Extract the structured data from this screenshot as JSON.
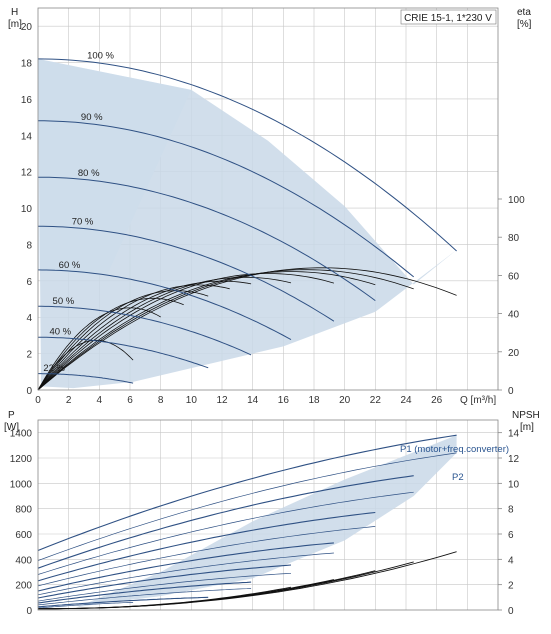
{
  "chart_data": [
    {
      "type": "line",
      "title": "CRIE 15-1, 1*230 V",
      "xlabel": "Q [m³/h]",
      "ylabel_left": [
        "H",
        "[m]"
      ],
      "ylabel_right": [
        "eta",
        "[%]"
      ],
      "xlim": [
        0,
        30
      ],
      "ylim": [
        0,
        21
      ],
      "eta_lim": [
        0,
        200
      ],
      "x_ticks": [
        "0",
        "2",
        "4",
        "6",
        "8",
        "10",
        "12",
        "14",
        "16",
        "18",
        "20",
        "22",
        "24",
        "26"
      ],
      "y_ticks": [
        "0",
        "2",
        "4",
        "6",
        "8",
        "10",
        "12",
        "14",
        "16",
        "18",
        "20"
      ],
      "eta_ticks": [
        "0",
        "20",
        "40",
        "60",
        "80",
        "100"
      ],
      "grid": true,
      "speed_labels": [
        "100 %",
        "90 %",
        "80 %",
        "70 %",
        "60 %",
        "50 %",
        "40 %",
        "22 %"
      ],
      "head_curves": [
        {
          "speed": 1.0,
          "h0": 18.2,
          "qmax": 27.3
        },
        {
          "speed": 0.9,
          "h0": 14.8,
          "qmax": 24.5
        },
        {
          "speed": 0.8,
          "h0": 11.7,
          "qmax": 22.0
        },
        {
          "speed": 0.7,
          "h0": 9.0,
          "qmax": 19.3
        },
        {
          "speed": 0.6,
          "h0": 6.6,
          "qmax": 16.5
        },
        {
          "speed": 0.5,
          "h0": 4.6,
          "qmax": 13.9
        },
        {
          "speed": 0.4,
          "h0": 2.9,
          "qmax": 11.1
        },
        {
          "speed": 0.22,
          "h0": 0.9,
          "qmax": 6.2
        }
      ],
      "operating_area": [
        [
          0,
          18.2
        ],
        [
          10,
          16.5
        ],
        [
          15,
          13.7
        ],
        [
          20,
          10.1
        ],
        [
          24.5,
          5.8
        ],
        [
          27.3,
          7.7
        ],
        [
          22,
          4.3
        ],
        [
          16,
          2.4
        ],
        [
          10,
          1.2
        ],
        [
          6.2,
          0.45
        ],
        [
          2.3,
          0.1
        ],
        [
          0.2,
          0.2
        ]
      ],
      "upper_light_area": [
        [
          0,
          18.2
        ],
        [
          10,
          16.5
        ],
        [
          4.5,
          6.3
        ],
        [
          0,
          6.6
        ]
      ],
      "eta_curves": [
        {
          "qpeak": 18.5,
          "etapeak": 64,
          "qmax": 27.3
        },
        {
          "qpeak": 17.5,
          "etapeak": 63,
          "qmax": 24.5
        },
        {
          "qpeak": 16.5,
          "etapeak": 62,
          "qmax": 22.0
        },
        {
          "qpeak": 15.0,
          "etapeak": 61,
          "qmax": 19.3
        },
        {
          "qpeak": 13.5,
          "etapeak": 59,
          "qmax": 16.5
        },
        {
          "qpeak": 12.0,
          "etapeak": 57,
          "qmax": 13.9
        },
        {
          "qpeak": 10.5,
          "etapeak": 55,
          "qmax": 12.5
        },
        {
          "qpeak": 9.0,
          "etapeak": 52,
          "qmax": 11.1
        },
        {
          "qpeak": 7.5,
          "etapeak": 48,
          "qmax": 9.5
        },
        {
          "qpeak": 6.0,
          "etapeak": 43,
          "qmax": 8.0
        },
        {
          "qpeak": 3.8,
          "etapeak": 26,
          "qmax": 6.2
        }
      ]
    },
    {
      "type": "line",
      "xlim": [
        0,
        30
      ],
      "ylabel_left": [
        "P",
        "[W]"
      ],
      "ylabel_right": [
        "NPSH",
        "[m]"
      ],
      "ylim": [
        0,
        1500
      ],
      "npsh_lim": [
        0,
        15
      ],
      "y_ticks": [
        "0",
        "200",
        "400",
        "600",
        "800",
        "1000",
        "1200",
        "1400"
      ],
      "npsh_ticks": [
        "0",
        "2",
        "4",
        "6",
        "8",
        "10",
        "12",
        "14"
      ],
      "grid": true,
      "series_labels": [
        "P1 (motor+freq.converter)",
        "P2"
      ],
      "power_curves": [
        {
          "p0": 470,
          "pend": 1380,
          "qmax": 27.3
        },
        {
          "p0": 390,
          "pend": 1240,
          "qmax": 27.3
        },
        {
          "p0": 330,
          "pend": 1060,
          "qmax": 24.5
        },
        {
          "p0": 280,
          "pend": 930,
          "qmax": 24.5
        },
        {
          "p0": 230,
          "pend": 770,
          "qmax": 22.0
        },
        {
          "p0": 190,
          "pend": 660,
          "qmax": 22.0
        },
        {
          "p0": 150,
          "pend": 530,
          "qmax": 19.3
        },
        {
          "p0": 120,
          "pend": 450,
          "qmax": 19.3
        },
        {
          "p0": 95,
          "pend": 355,
          "qmax": 16.5
        },
        {
          "p0": 70,
          "pend": 290,
          "qmax": 16.5
        },
        {
          "p0": 55,
          "pend": 220,
          "qmax": 13.9
        },
        {
          "p0": 40,
          "pend": 170,
          "qmax": 13.9
        },
        {
          "p0": 25,
          "pend": 100,
          "qmax": 11.1
        },
        {
          "p0": 15,
          "pend": 60,
          "qmax": 6.2
        }
      ],
      "power_area": [
        [
          2.5,
          20
        ],
        [
          8,
          300
        ],
        [
          14,
          700
        ],
        [
          20,
          1030
        ],
        [
          27.3,
          1380
        ],
        [
          27.3,
          1240
        ],
        [
          24.5,
          900
        ],
        [
          20,
          550
        ],
        [
          14,
          250
        ],
        [
          8,
          110
        ],
        [
          4,
          50
        ]
      ],
      "npsh_curves": [
        {
          "qmax": 27.3,
          "npsh_end": 4.6
        },
        {
          "qmax": 24.5,
          "npsh_end": 3.8
        },
        {
          "qmax": 22.0,
          "npsh_end": 3.1
        },
        {
          "qmax": 19.3,
          "npsh_end": 2.4
        },
        {
          "qmax": 16.5,
          "npsh_end": 1.8
        }
      ]
    }
  ]
}
